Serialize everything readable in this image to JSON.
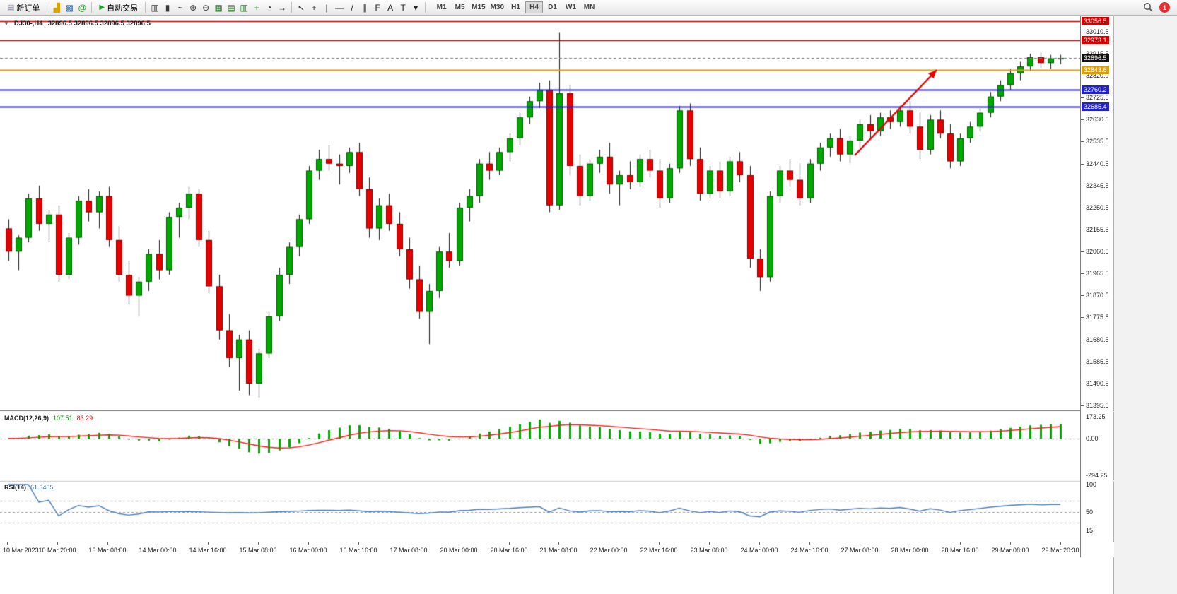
{
  "toolbar": {
    "new_order_label": "新订单",
    "autotrading_label": "自动交易",
    "left_icons": [
      {
        "name": "profiles-icon",
        "glyph": "▟",
        "color": "#d9a300"
      },
      {
        "name": "charts-icon",
        "glyph": "▩",
        "color": "#3b6ea5"
      },
      {
        "name": "metaeditor-icon",
        "glyph": "@",
        "color": "#1d9e1d"
      }
    ],
    "chart_icons": [
      {
        "name": "bar-chart-icon",
        "glyph": "▥",
        "color": "#3a3a3a"
      },
      {
        "name": "candlestick-chart-icon",
        "glyph": "▮",
        "color": "#3a3a3a"
      },
      {
        "name": "line-chart-icon",
        "glyph": "~",
        "color": "#3a3a3a"
      },
      {
        "name": "zoom-in-icon",
        "glyph": "⊕",
        "color": "#3a3a3a"
      },
      {
        "name": "zoom-out-icon",
        "glyph": "⊖",
        "color": "#3a3a3a"
      },
      {
        "name": "tile-windows-icon",
        "glyph": "▦",
        "color": "#2e7d32"
      },
      {
        "name": "cascade-windows-icon",
        "glyph": "▤",
        "color": "#2e7d32"
      },
      {
        "name": "arrange-windows-icon",
        "glyph": "▥",
        "color": "#2e7d32"
      },
      {
        "name": "add-chart-icon",
        "glyph": "+",
        "color": "#1d9e1d"
      },
      {
        "name": "clock-icon",
        "glyph": "◔",
        "color": "#3a3a3a"
      },
      {
        "name": "chart-shift-icon",
        "glyph": "→",
        "color": "#3a3a3a"
      }
    ],
    "draw_icons": [
      {
        "name": "cursor-icon",
        "glyph": "↖",
        "color": "#222222"
      },
      {
        "name": "crosshair-icon",
        "glyph": "+",
        "color": "#222222"
      },
      {
        "name": "vertical-line-icon",
        "glyph": "|",
        "color": "#222222"
      },
      {
        "name": "horizontal-line-icon",
        "glyph": "—",
        "color": "#222222"
      },
      {
        "name": "trendline-icon",
        "glyph": "/",
        "color": "#222222"
      },
      {
        "name": "channel-icon",
        "glyph": "∥",
        "color": "#222222"
      },
      {
        "name": "fibonacci-icon",
        "glyph": "F",
        "color": "#222222"
      },
      {
        "name": "text-icon",
        "glyph": "A",
        "color": "#222222"
      },
      {
        "name": "label-icon",
        "glyph": "T",
        "color": "#222222"
      },
      {
        "name": "arrows-icon",
        "glyph": "▾",
        "color": "#222222"
      }
    ],
    "timeframes": [
      "M1",
      "M5",
      "M15",
      "M30",
      "H1",
      "H4",
      "D1",
      "W1",
      "MN"
    ],
    "active_timeframe": "H4",
    "badge_count": "1"
  },
  "chart": {
    "symbol_period": "DJ30-,H4",
    "ohlc": "32896.5 32896.5 32896.5 32896.5",
    "macd": {
      "title": "MACD(12,26,9)",
      "value_main": "107.51",
      "value_signal": "83.29",
      "scale_top": "173.25",
      "scale_zero": "0.00",
      "scale_bottom": "-294.25"
    },
    "rsi": {
      "title": "RSI(14)",
      "value": "61.3405",
      "scale_top": "100",
      "scale_mid": "50",
      "scale_bottom": "15"
    }
  },
  "chart_data": {
    "type": "candlestick",
    "symbol": "DJ30-",
    "timeframe": "H4",
    "current_price": 32896.5,
    "current_price_label": "32896.5",
    "current_price_label_bg": "#111111",
    "price_range": [
      31374,
      33077
    ],
    "price_ticks": [
      "33010.5",
      "32915.5",
      "32820.0",
      "32725.5",
      "32630.5",
      "32535.5",
      "32440.5",
      "32345.5",
      "32250.5",
      "32155.5",
      "32060.5",
      "31965.5",
      "31870.5",
      "31775.5",
      "31680.5",
      "31585.5",
      "31490.5",
      "31395.5"
    ],
    "time_labels": [
      "10 Mar 2023",
      "10 Mar 20:00",
      "13 Mar 08:00",
      "14 Mar 00:00",
      "14 Mar 16:00",
      "15 Mar 08:00",
      "16 Mar 00:00",
      "16 Mar 16:00",
      "17 Mar 08:00",
      "20 Mar 00:00",
      "20 Mar 16:00",
      "21 Mar 08:00",
      "22 Mar 00:00",
      "22 Mar 16:00",
      "23 Mar 08:00",
      "24 Mar 00:00",
      "24 Mar 16:00",
      "27 Mar 08:00",
      "28 Mar 00:00",
      "28 Mar 16:00",
      "29 Mar 08:00",
      "29 Mar 20:30"
    ],
    "up_color": "#00a800",
    "down_color": "#e60000",
    "wick_color": "#1a1a1a",
    "horizontal_lines": [
      {
        "label": "33056.5",
        "price": 33056.5,
        "color": "#d40000",
        "width": 1.5
      },
      {
        "label": "32973.1",
        "price": 32973.1,
        "color": "#d40000",
        "width": 1.5
      },
      {
        "label": "32843.6",
        "price": 32843.6,
        "color": "#d9a012",
        "width": 2
      },
      {
        "label": "32760.2",
        "price": 32760.2,
        "color": "#2222cc",
        "width": 2
      },
      {
        "label": "32685.4",
        "price": 32685.4,
        "color": "#2222cc",
        "width": 2
      }
    ],
    "candles": [
      [
        32160,
        32200,
        32020,
        32060
      ],
      [
        32060,
        32130,
        31980,
        32120
      ],
      [
        32120,
        32310,
        32100,
        32290
      ],
      [
        32290,
        32345,
        32150,
        32180
      ],
      [
        32180,
        32240,
        32100,
        32220
      ],
      [
        32220,
        32260,
        31930,
        31960
      ],
      [
        31960,
        32140,
        31940,
        32120
      ],
      [
        32120,
        32300,
        32090,
        32280
      ],
      [
        32280,
        32330,
        32190,
        32230
      ],
      [
        32230,
        32320,
        32160,
        32300
      ],
      [
        32300,
        32340,
        32080,
        32110
      ],
      [
        32110,
        32170,
        31930,
        31960
      ],
      [
        31960,
        32020,
        31830,
        31870
      ],
      [
        31870,
        31950,
        31780,
        31930
      ],
      [
        31930,
        32070,
        31890,
        32050
      ],
      [
        32050,
        32110,
        31940,
        31980
      ],
      [
        31980,
        32230,
        31960,
        32210
      ],
      [
        32210,
        32270,
        32120,
        32250
      ],
      [
        32250,
        32340,
        32200,
        32310
      ],
      [
        32310,
        32330,
        32080,
        32110
      ],
      [
        32110,
        32150,
        31880,
        31910
      ],
      [
        31910,
        31960,
        31680,
        31720
      ],
      [
        31720,
        31790,
        31560,
        31600
      ],
      [
        31600,
        31700,
        31460,
        31680
      ],
      [
        31680,
        31720,
        31440,
        31490
      ],
      [
        31490,
        31640,
        31430,
        31620
      ],
      [
        31620,
        31800,
        31600,
        31780
      ],
      [
        31780,
        31990,
        31760,
        31960
      ],
      [
        31960,
        32100,
        31920,
        32080
      ],
      [
        32080,
        32220,
        32040,
        32200
      ],
      [
        32200,
        32430,
        32180,
        32410
      ],
      [
        32410,
        32500,
        32370,
        32460
      ],
      [
        32460,
        32520,
        32410,
        32440
      ],
      [
        32440,
        32480,
        32350,
        32430
      ],
      [
        32430,
        32510,
        32400,
        32490
      ],
      [
        32490,
        32530,
        32300,
        32330
      ],
      [
        32330,
        32380,
        32120,
        32160
      ],
      [
        32160,
        32290,
        32110,
        32260
      ],
      [
        32260,
        32310,
        32150,
        32180
      ],
      [
        32180,
        32230,
        32040,
        32070
      ],
      [
        32070,
        32120,
        31900,
        31940
      ],
      [
        31940,
        32000,
        31770,
        31800
      ],
      [
        31800,
        31920,
        31660,
        31890
      ],
      [
        31890,
        32080,
        31860,
        32060
      ],
      [
        32060,
        32140,
        31990,
        32020
      ],
      [
        32020,
        32270,
        32000,
        32250
      ],
      [
        32250,
        32330,
        32190,
        32300
      ],
      [
        32300,
        32460,
        32270,
        32440
      ],
      [
        32440,
        32490,
        32370,
        32410
      ],
      [
        32410,
        32510,
        32390,
        32490
      ],
      [
        32490,
        32570,
        32450,
        32550
      ],
      [
        32550,
        32660,
        32520,
        32640
      ],
      [
        32640,
        32730,
        32610,
        32710
      ],
      [
        32710,
        32790,
        32680,
        32760
      ],
      [
        32760,
        32800,
        32230,
        32260
      ],
      [
        32260,
        33005,
        32240,
        32745
      ],
      [
        32745,
        32780,
        32390,
        32430
      ],
      [
        32430,
        32480,
        32260,
        32300
      ],
      [
        32300,
        32460,
        32280,
        32440
      ],
      [
        32440,
        32500,
        32400,
        32470
      ],
      [
        32470,
        32530,
        32310,
        32350
      ],
      [
        32350,
        32410,
        32260,
        32390
      ],
      [
        32390,
        32450,
        32330,
        32360
      ],
      [
        32360,
        32480,
        32340,
        32460
      ],
      [
        32460,
        32500,
        32380,
        32410
      ],
      [
        32410,
        32460,
        32250,
        32290
      ],
      [
        32290,
        32440,
        32270,
        32420
      ],
      [
        32420,
        32690,
        32400,
        32670
      ],
      [
        32670,
        32700,
        32430,
        32460
      ],
      [
        32460,
        32510,
        32280,
        32310
      ],
      [
        32310,
        32430,
        32290,
        32410
      ],
      [
        32410,
        32450,
        32290,
        32320
      ],
      [
        32320,
        32470,
        32300,
        32450
      ],
      [
        32450,
        32490,
        32360,
        32390
      ],
      [
        32390,
        32430,
        31990,
        32030
      ],
      [
        32030,
        32070,
        31890,
        31950
      ],
      [
        31950,
        32320,
        31930,
        32300
      ],
      [
        32300,
        32430,
        32270,
        32410
      ],
      [
        32410,
        32460,
        32340,
        32370
      ],
      [
        32370,
        32440,
        32260,
        32290
      ],
      [
        32290,
        32460,
        32270,
        32440
      ],
      [
        32440,
        32530,
        32410,
        32510
      ],
      [
        32510,
        32570,
        32470,
        32550
      ],
      [
        32550,
        32590,
        32450,
        32480
      ],
      [
        32480,
        32560,
        32440,
        32540
      ],
      [
        32540,
        32630,
        32510,
        32610
      ],
      [
        32610,
        32650,
        32550,
        32580
      ],
      [
        32580,
        32660,
        32560,
        32640
      ],
      [
        32640,
        32670,
        32590,
        32620
      ],
      [
        32620,
        32690,
        32600,
        32670
      ],
      [
        32670,
        32710,
        32570,
        32600
      ],
      [
        32600,
        32660,
        32460,
        32500
      ],
      [
        32500,
        32650,
        32480,
        32630
      ],
      [
        32630,
        32670,
        32550,
        32570
      ],
      [
        32570,
        32610,
        32420,
        32450
      ],
      [
        32450,
        32570,
        32430,
        32550
      ],
      [
        32550,
        32620,
        32530,
        32600
      ],
      [
        32600,
        32680,
        32580,
        32660
      ],
      [
        32660,
        32750,
        32640,
        32730
      ],
      [
        32730,
        32800,
        32710,
        32780
      ],
      [
        32780,
        32850,
        32760,
        32830
      ],
      [
        32830,
        32880,
        32800,
        32860
      ],
      [
        32860,
        32915,
        32840,
        32900
      ],
      [
        32900,
        32920,
        32855,
        32875
      ],
      [
        32875,
        32910,
        32850,
        32895
      ],
      [
        32895,
        32910,
        32870,
        32896.5
      ]
    ],
    "macd": {
      "fast": 12,
      "slow": 26,
      "signal": 9,
      "range": [
        -294.25,
        173.25
      ],
      "histogram_color": "#00a800",
      "signal_color": "#ff1a1a",
      "last_main": 107.51,
      "last_signal": 83.29
    },
    "rsi": {
      "period": 14,
      "range": [
        0,
        100
      ],
      "levels": [
        70,
        50,
        30
      ],
      "color": "#4a7ebb",
      "last": 61.3405
    },
    "annotations": [
      {
        "type": "arrow",
        "color": "#e60000",
        "from": [
          1209,
          197
        ],
        "to": [
          1325,
          76
        ]
      }
    ]
  }
}
